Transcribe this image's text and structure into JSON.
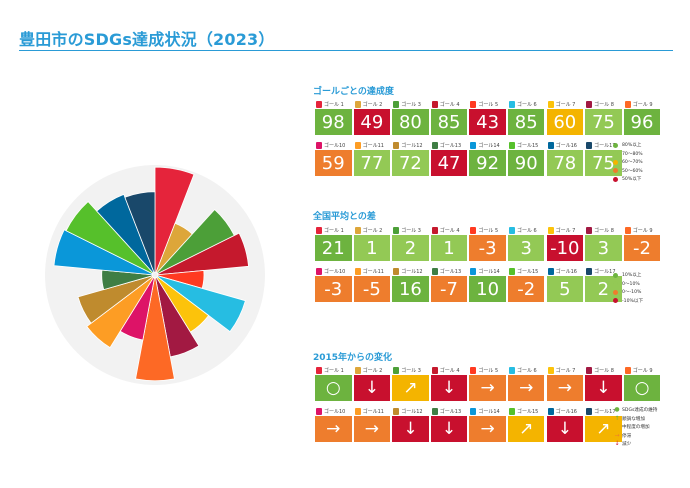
{
  "title": "豊田市のSDGs達成状況（2023）",
  "goal_colors": [
    "#E5243B",
    "#DDA63A",
    "#4C9F38",
    "#C5192D",
    "#FF3A21",
    "#26BDE2",
    "#FCC30B",
    "#A21942",
    "#FD6925",
    "#DD1367",
    "#FD9D24",
    "#BF8B2E",
    "#3F7E44",
    "#0A97D9",
    "#56C02B",
    "#00689D",
    "#19486A"
  ],
  "goal_labels": [
    "ゴール 1",
    "ゴール 2",
    "ゴール 3",
    "ゴール 4",
    "ゴール 5",
    "ゴール 6",
    "ゴール 7",
    "ゴール 8",
    "ゴール 9",
    "ゴール10",
    "ゴール11",
    "ゴール12",
    "ゴール13",
    "ゴール14",
    "ゴール15",
    "ゴール16",
    "ゴール17"
  ],
  "status_colors": {
    "green": "#6DB33F",
    "lightgreen": "#93C955",
    "yellow": "#F4B400",
    "orange": "#EE7D2D",
    "red": "#C8102E"
  },
  "sections": {
    "achievement": {
      "heading": "ゴールごとの達成度",
      "values": [
        "98",
        "49",
        "80",
        "85",
        "43",
        "85",
        "60",
        "75",
        "96",
        "59",
        "77",
        "72",
        "47",
        "92",
        "90",
        "78",
        "75"
      ],
      "status": [
        "green",
        "red",
        "green",
        "green",
        "red",
        "green",
        "yellow",
        "lightgreen",
        "green",
        "orange",
        "lightgreen",
        "lightgreen",
        "red",
        "green",
        "green",
        "lightgreen",
        "lightgreen"
      ],
      "legend": [
        {
          "label": "80%以上",
          "color": "#6DB33F"
        },
        {
          "label": "70～80%",
          "color": "#93C955"
        },
        {
          "label": "60～70%",
          "color": "#F4B400"
        },
        {
          "label": "50～60%",
          "color": "#EE7D2D"
        },
        {
          "label": "50%以下",
          "color": "#C8102E"
        }
      ]
    },
    "difference": {
      "heading": "全国平均との差",
      "values": [
        "21",
        "1",
        "2",
        "1",
        "-3",
        "3",
        "-10",
        "3",
        "-2",
        "-3",
        "-5",
        "16",
        "-7",
        "10",
        "-2",
        "5",
        "2"
      ],
      "status": [
        "green",
        "lightgreen",
        "lightgreen",
        "lightgreen",
        "orange",
        "lightgreen",
        "red",
        "lightgreen",
        "orange",
        "orange",
        "orange",
        "green",
        "orange",
        "green",
        "orange",
        "lightgreen",
        "lightgreen"
      ],
      "legend": [
        {
          "label": "10%以上",
          "color": "#6DB33F"
        },
        {
          "label": "0～10%",
          "color": "#93C955"
        },
        {
          "label": "0～-10%",
          "color": "#EE7D2D"
        },
        {
          "label": "-10%以下",
          "color": "#C8102E"
        }
      ]
    },
    "change": {
      "heading": "2015年からの変化",
      "values": [
        "○",
        "↓",
        "↗",
        "↓",
        "→",
        "→",
        "→",
        "↓",
        "○",
        "→",
        "→",
        "↓",
        "↓",
        "→",
        "↗",
        "↓",
        "↗"
      ],
      "status": [
        "green",
        "red",
        "yellow",
        "red",
        "orange",
        "orange",
        "orange",
        "red",
        "green",
        "orange",
        "orange",
        "red",
        "red",
        "orange",
        "yellow",
        "red",
        "yellow"
      ],
      "legend": [
        {
          "symbol": "●",
          "label": "SDGs達成の維持",
          "color": "#6DB33F"
        },
        {
          "symbol": "↑",
          "label": "順調な増加",
          "color": "#6DB33F"
        },
        {
          "symbol": "↗",
          "label": "中程度の増加",
          "color": "#F4B400"
        },
        {
          "symbol": "→",
          "label": "停滞",
          "color": "#EE7D2D"
        },
        {
          "symbol": "↓",
          "label": "減少",
          "color": "#C8102E"
        }
      ]
    }
  },
  "chart_data": [
    {
      "type": "table",
      "title": "ゴールごとの達成度",
      "categories": [
        "ゴール 1",
        "ゴール 2",
        "ゴール 3",
        "ゴール 4",
        "ゴール 5",
        "ゴール 6",
        "ゴール 7",
        "ゴール 8",
        "ゴール 9",
        "ゴール10",
        "ゴール11",
        "ゴール12",
        "ゴール13",
        "ゴール14",
        "ゴール15",
        "ゴール16",
        "ゴール17"
      ],
      "values": [
        98,
        49,
        80,
        85,
        43,
        85,
        60,
        75,
        96,
        59,
        77,
        72,
        47,
        92,
        90,
        78,
        75
      ]
    },
    {
      "type": "table",
      "title": "全国平均との差",
      "categories": [
        "ゴール 1",
        "ゴール 2",
        "ゴール 3",
        "ゴール 4",
        "ゴール 5",
        "ゴール 6",
        "ゴール 7",
        "ゴール 8",
        "ゴール 9",
        "ゴール10",
        "ゴール11",
        "ゴール12",
        "ゴール13",
        "ゴール14",
        "ゴール15",
        "ゴール16",
        "ゴール17"
      ],
      "values": [
        21,
        1,
        2,
        1,
        -3,
        3,
        -10,
        3,
        -2,
        -3,
        -5,
        16,
        -7,
        10,
        -2,
        5,
        2
      ]
    },
    {
      "type": "table",
      "title": "2015年からの変化",
      "categories": [
        "ゴール 1",
        "ゴール 2",
        "ゴール 3",
        "ゴール 4",
        "ゴール 5",
        "ゴール 6",
        "ゴール 7",
        "ゴール 8",
        "ゴール 9",
        "ゴール10",
        "ゴール11",
        "ゴール12",
        "ゴール13",
        "ゴール14",
        "ゴール15",
        "ゴール16",
        "ゴール17"
      ],
      "values": [
        "○",
        "↓",
        "↗",
        "↓",
        "→",
        "→",
        "→",
        "↓",
        "○",
        "→",
        "→",
        "↓",
        "↓",
        "→",
        "↗",
        "↓",
        "↗"
      ]
    },
    {
      "type": "bar",
      "categories": [
        "ゴール 1",
        "ゴール 2",
        "ゴール 3",
        "ゴール 4",
        "ゴール 5",
        "ゴール 6",
        "ゴール 7",
        "ゴール 8",
        "ゴール 9",
        "ゴール10",
        "ゴール11",
        "ゴール12",
        "ゴール13",
        "ゴール14",
        "ゴール15",
        "ゴール16",
        "ゴール17"
      ],
      "values": [
        98,
        49,
        80,
        85,
        43,
        85,
        60,
        75,
        96,
        59,
        77,
        72,
        47,
        92,
        90,
        78,
        75
      ],
      "ylim": [
        0,
        100
      ]
    }
  ]
}
